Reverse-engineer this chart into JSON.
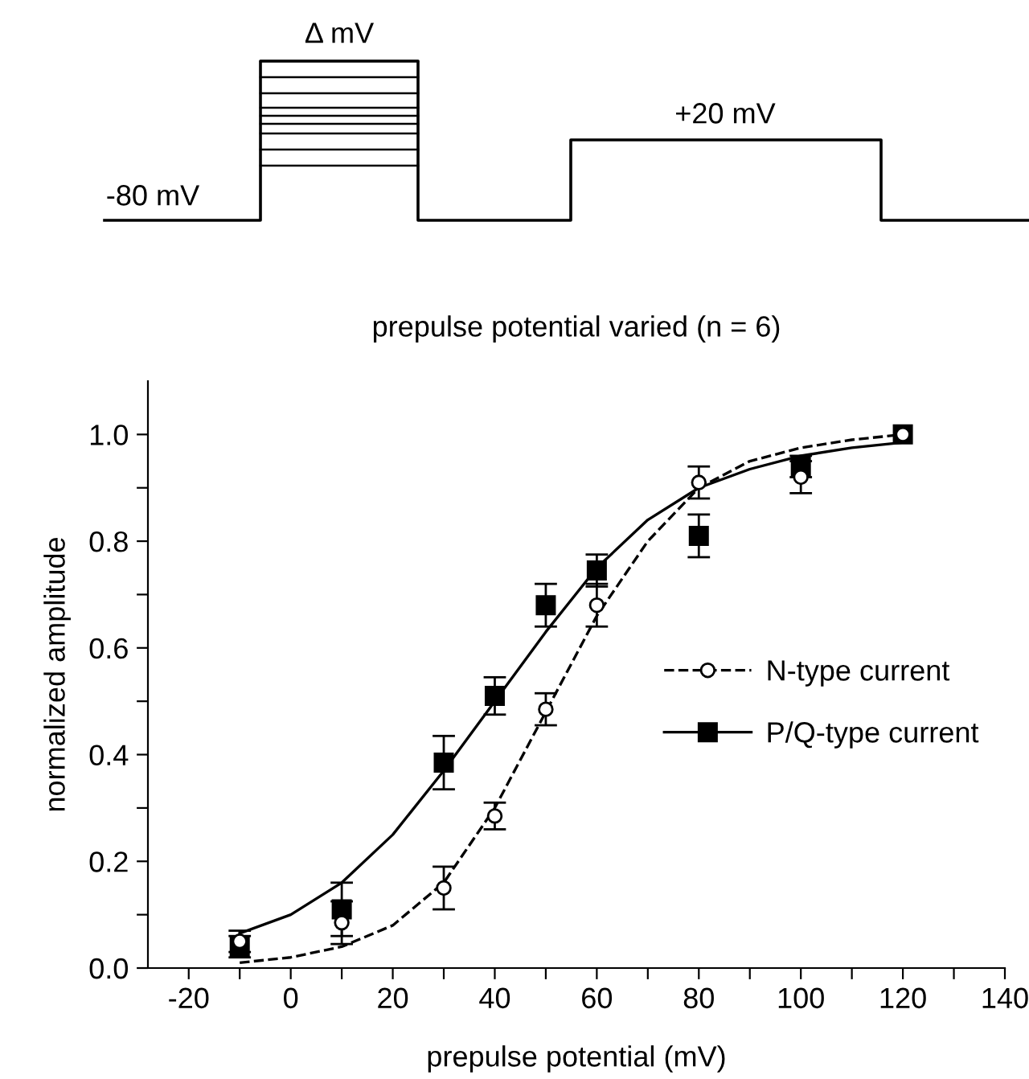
{
  "chart_data": {
    "type": "scatter",
    "title": "prepulse potential varied (n = 6)",
    "xlabel": "prepulse potential (mV)",
    "ylabel": "normalized amplitude",
    "annotations": [
      "Δ mV",
      "+20 mV",
      "-80 mV"
    ],
    "series": [
      {
        "name": "N-type current",
        "marker": "circle",
        "color": "#000000",
        "x": [
          -10,
          10,
          30,
          40,
          50,
          60,
          80,
          100,
          120
        ],
        "values": [
          0.05,
          0.085,
          0.15,
          0.285,
          0.485,
          0.68,
          0.91,
          0.92,
          1.0
        ],
        "errors": [
          0.02,
          0.04,
          0.04,
          0.025,
          0.03,
          0.04,
          0.03,
          0.03,
          null
        ]
      },
      {
        "name": "P/Q-type current",
        "marker": "square",
        "color": "#000000",
        "x": [
          -10,
          10,
          30,
          40,
          50,
          60,
          80,
          100,
          120
        ],
        "values": [
          0.04,
          0.11,
          0.385,
          0.51,
          0.68,
          0.745,
          0.81,
          0.94,
          1.0
        ],
        "errors": [
          0.02,
          0.05,
          0.05,
          0.035,
          0.04,
          0.03,
          0.04,
          0.02,
          null
        ]
      },
      {
        "type": "line",
        "line_style": "dashed",
        "color": "#000000",
        "x": [
          -10,
          0,
          10,
          20,
          30,
          40,
          50,
          60,
          70,
          80,
          90,
          100,
          110,
          120
        ],
        "values": [
          0.01,
          0.02,
          0.04,
          0.08,
          0.16,
          0.3,
          0.48,
          0.66,
          0.8,
          0.9,
          0.95,
          0.975,
          0.99,
          1.0
        ]
      },
      {
        "type": "line",
        "line_style": "solid",
        "color": "#000000",
        "x": [
          -10,
          0,
          10,
          20,
          30,
          40,
          50,
          60,
          70,
          80,
          90,
          100,
          110,
          120
        ],
        "values": [
          0.065,
          0.1,
          0.16,
          0.25,
          0.37,
          0.5,
          0.63,
          0.75,
          0.84,
          0.9,
          0.935,
          0.96,
          0.975,
          0.985
        ]
      }
    ],
    "xlim": [
      -28,
      140
    ],
    "ylim": [
      0,
      1.1
    ],
    "xticks": [
      -20,
      {
        "value": -10,
        "label": null
      },
      0,
      {
        "value": 10,
        "label": null
      },
      20,
      {
        "value": 30,
        "label": null
      },
      40,
      {
        "value": 50,
        "label": null
      },
      60,
      {
        "value": 70,
        "label": null
      },
      80,
      {
        "value": 90,
        "label": null
      },
      100,
      {
        "value": 110,
        "label": null
      },
      120,
      {
        "value": 130,
        "label": null
      },
      140
    ],
    "yticks": [
      {
        "value": 0,
        "label": "0.0"
      },
      {
        "value": 0.1,
        "label": null
      },
      {
        "value": 0.2,
        "label": "0.2"
      },
      {
        "value": 0.3,
        "label": null
      },
      {
        "value": 0.4,
        "label": "0.4"
      },
      {
        "value": 0.5,
        "label": null
      },
      {
        "value": 0.6,
        "label": "0.6"
      },
      {
        "value": 0.7,
        "label": null
      },
      {
        "value": 0.8,
        "label": "0.8"
      },
      {
        "value": 0.9,
        "label": null
      },
      {
        "value": 1.0,
        "label": "1.0"
      }
    ],
    "grid": false,
    "legend": "right"
  }
}
